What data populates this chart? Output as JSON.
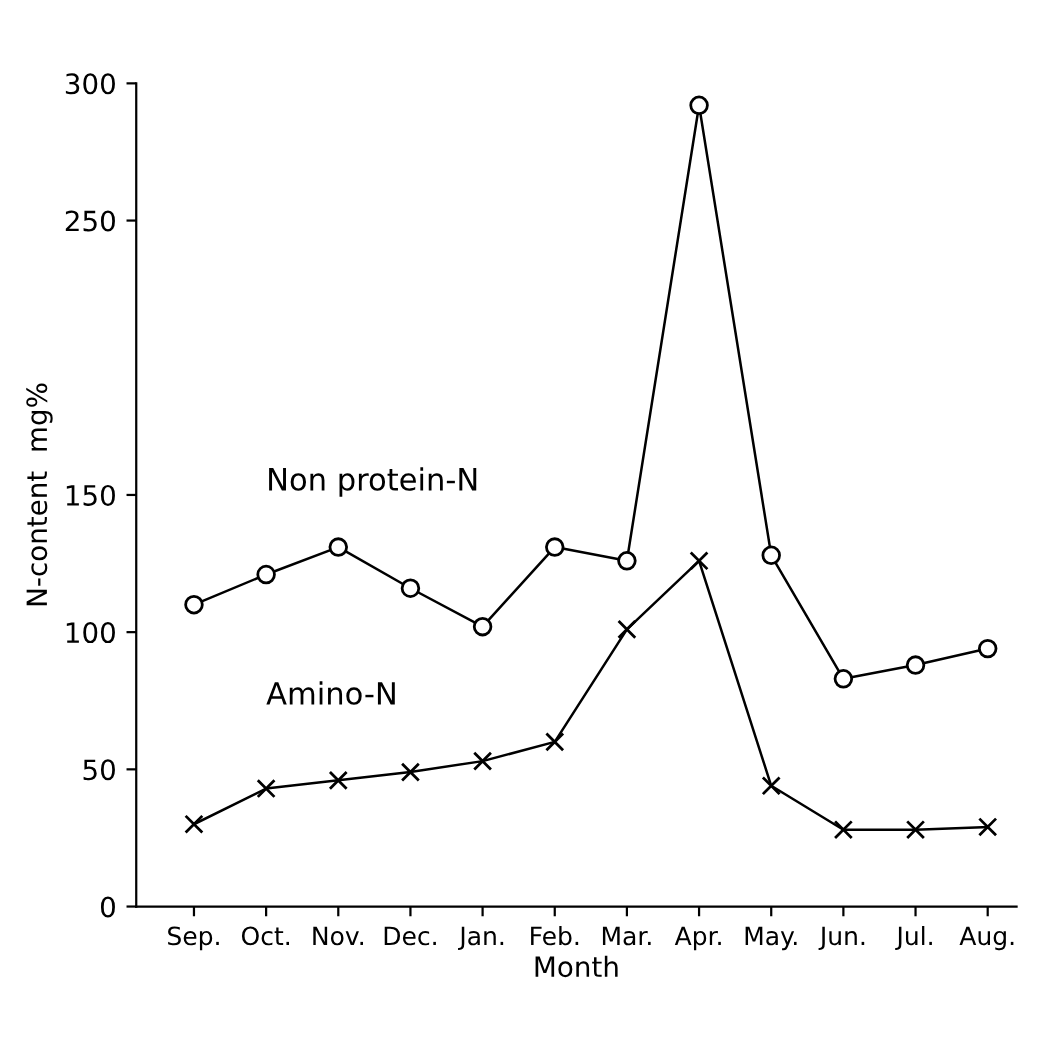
{
  "chart_data": {
    "type": "line",
    "xlabel": "Month",
    "ylabel": "N-content  mg%",
    "categories": [
      "Sep.",
      "Oct.",
      "Nov.",
      "Dec.",
      "Jan.",
      "Feb.",
      "Mar.",
      "Apr.",
      "May.",
      "Jun.",
      "Jul.",
      "Aug."
    ],
    "series": [
      {
        "name": "Non protein-N",
        "color": "#000000",
        "marker": "circle",
        "values": [
          110,
          121,
          131,
          116,
          102,
          131,
          126,
          292,
          128,
          83,
          88,
          94
        ]
      },
      {
        "name": "Amino-N",
        "color": "#000000",
        "marker": "cross",
        "values": [
          30,
          43,
          46,
          49,
          53,
          60,
          101,
          126,
          44,
          28,
          28,
          29
        ]
      }
    ],
    "ylim": [
      0,
      300
    ],
    "yticks": [
      0,
      50,
      100,
      150,
      250,
      300
    ],
    "grid": false,
    "legend": false,
    "line_style": "solid"
  }
}
